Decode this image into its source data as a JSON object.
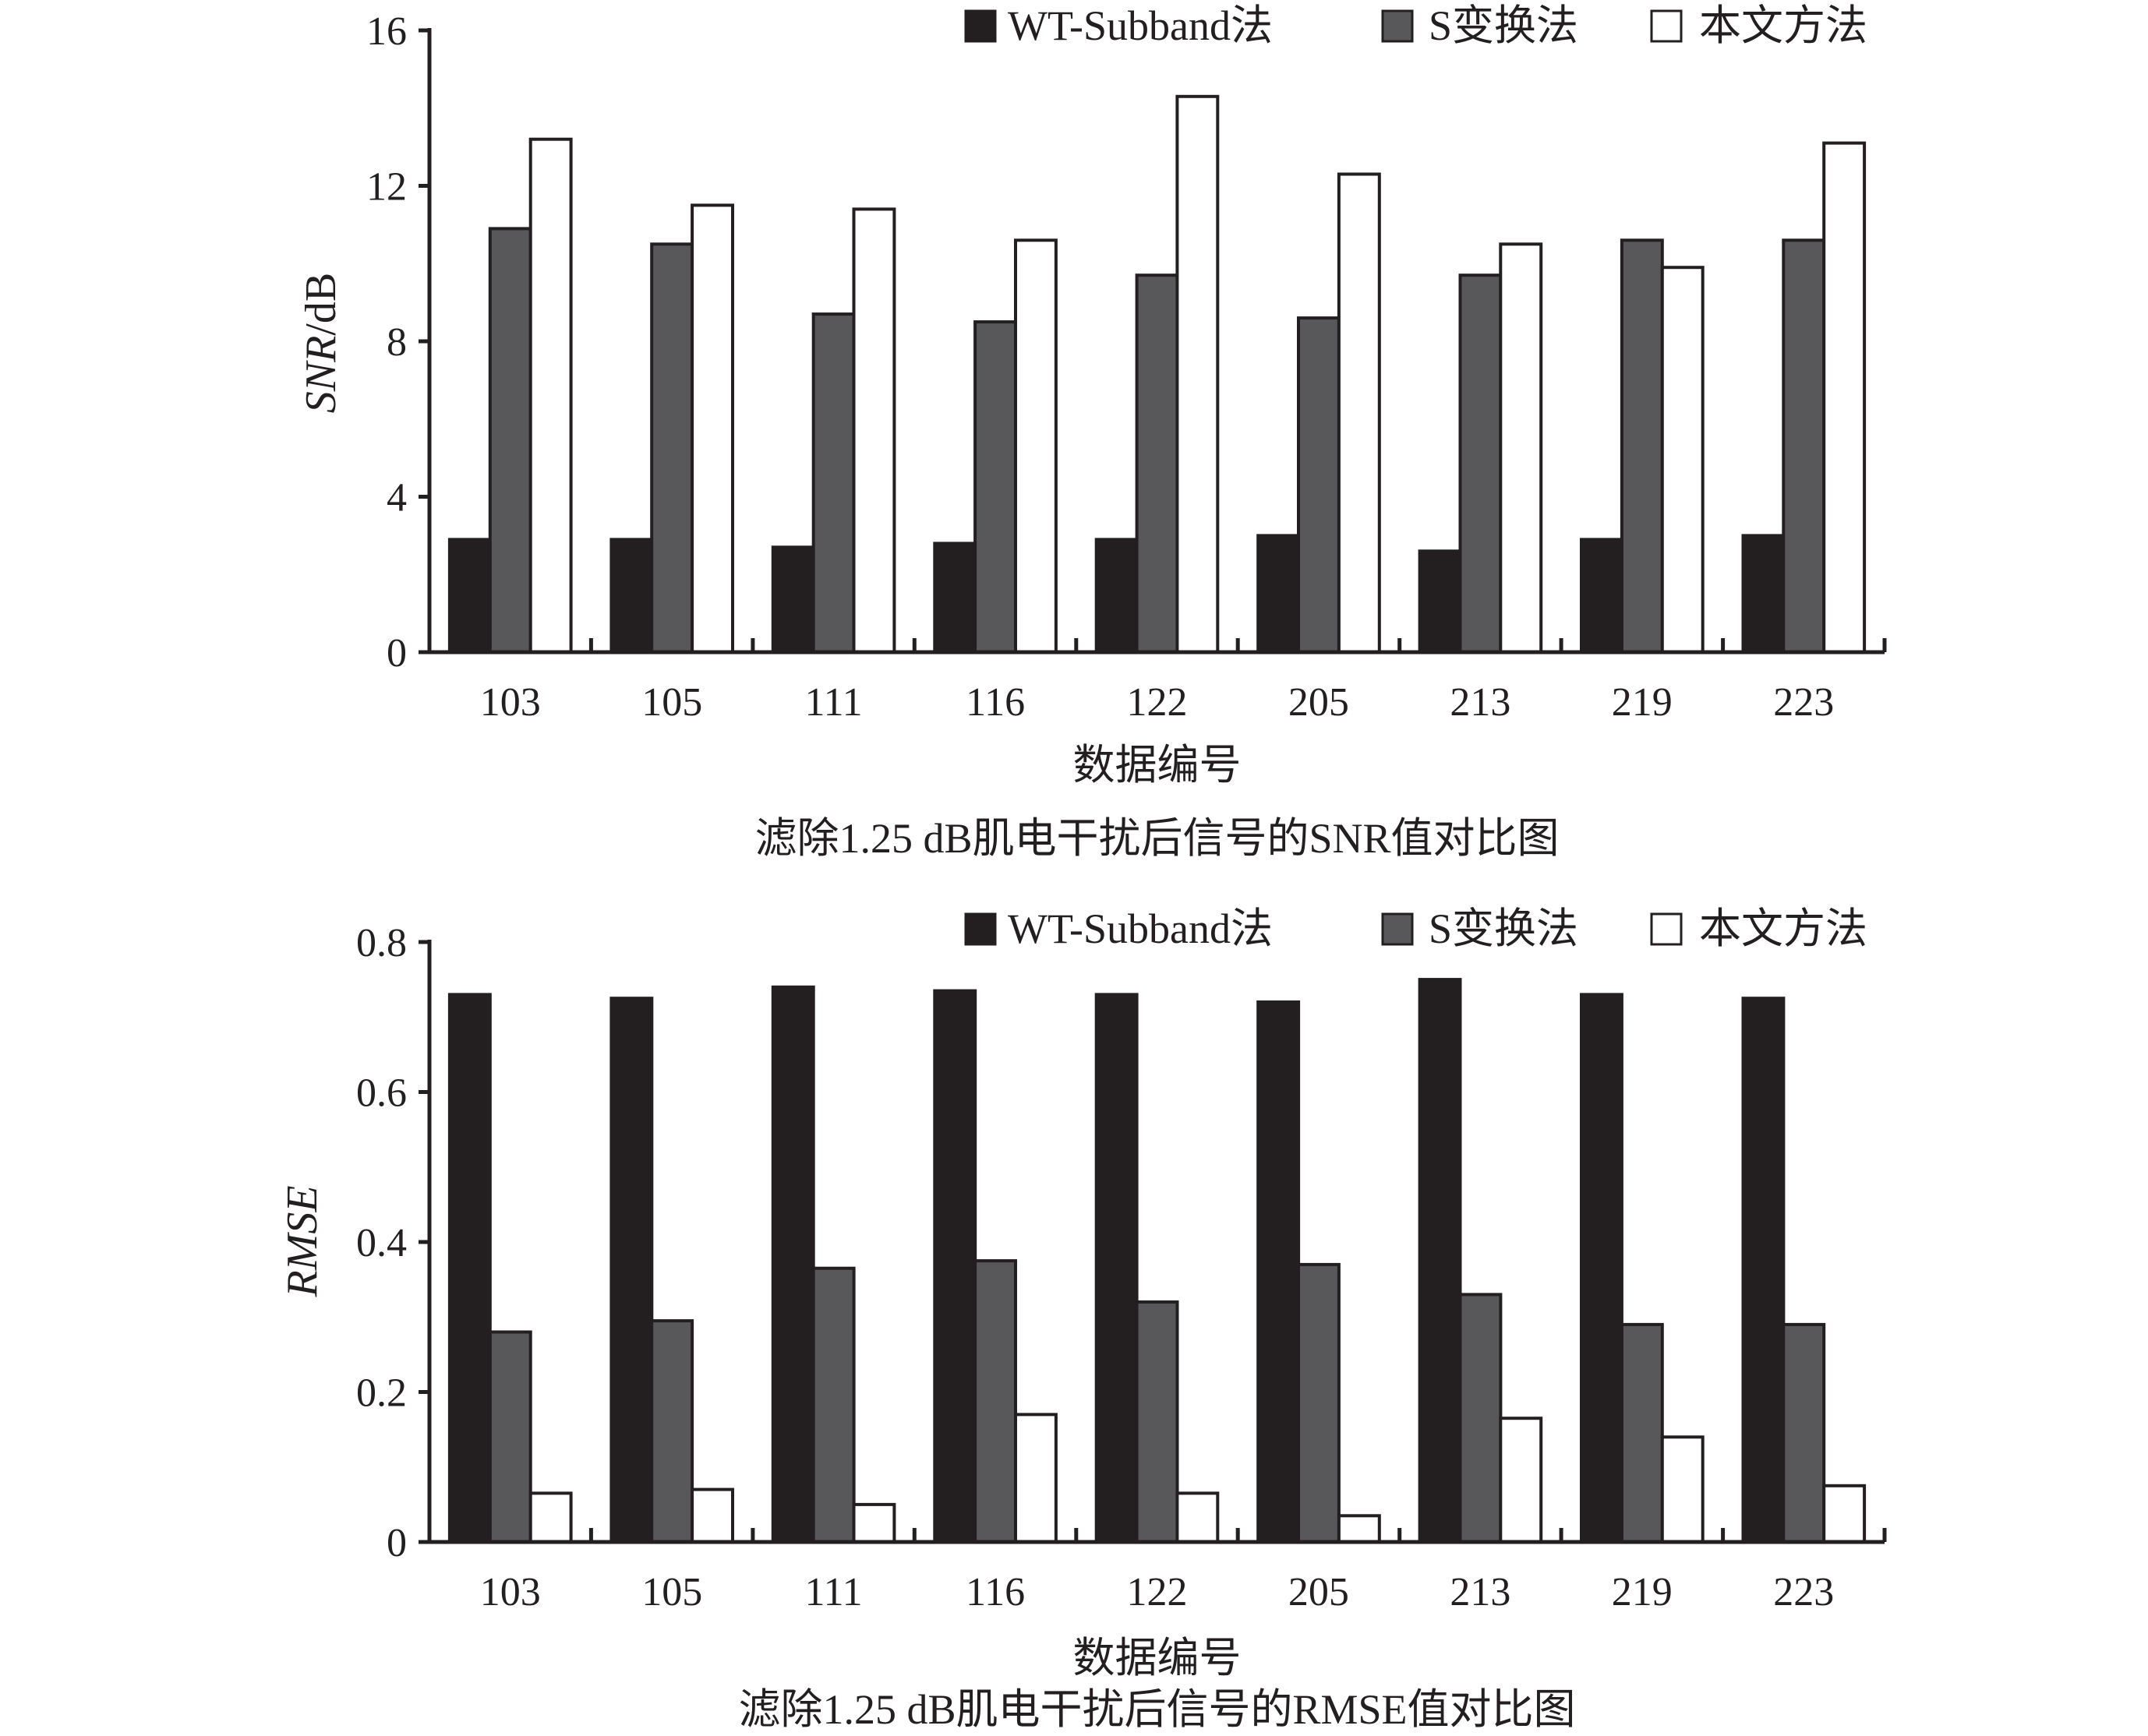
{
  "chart_data": [
    {
      "type": "bar",
      "title": "滤除1.25 dB肌电干扰后信号的SNR值对比图",
      "xlabel": "数据编号",
      "ylabel": "SNR/dB",
      "ylim": [
        0,
        16
      ],
      "yticks": [
        0,
        4,
        8,
        12,
        16
      ],
      "categories": [
        "103",
        "105",
        "111",
        "116",
        "122",
        "205",
        "213",
        "219",
        "223"
      ],
      "series": [
        {
          "name": "WT-Subband法",
          "color": "#231f20",
          "values": [
            2.9,
            2.9,
            2.7,
            2.8,
            2.9,
            3.0,
            2.6,
            2.9,
            3.0
          ]
        },
        {
          "name": "S变换法",
          "color": "#58585a",
          "values": [
            10.9,
            10.5,
            8.7,
            8.5,
            9.7,
            8.6,
            9.7,
            10.6,
            10.6
          ]
        },
        {
          "name": "本文方法",
          "color": "#ffffff",
          "values": [
            13.2,
            11.5,
            11.4,
            10.6,
            14.3,
            12.3,
            10.5,
            9.9,
            13.1
          ]
        }
      ],
      "legend": "top-right",
      "grid": false
    },
    {
      "type": "bar",
      "title": "滤除1.25 dB肌电干扰后信号的RMSE值对比图",
      "xlabel": "数据编号",
      "ylabel": "RMSE",
      "ylim": [
        0,
        0.8
      ],
      "yticks": [
        0,
        0.2,
        0.4,
        0.6,
        0.8
      ],
      "categories": [
        "103",
        "105",
        "111",
        "116",
        "122",
        "205",
        "213",
        "219",
        "223"
      ],
      "series": [
        {
          "name": "WT-Subband法",
          "color": "#231f20",
          "values": [
            0.73,
            0.725,
            0.74,
            0.735,
            0.73,
            0.72,
            0.75,
            0.73,
            0.725
          ]
        },
        {
          "name": "S变换法",
          "color": "#58585a",
          "values": [
            0.28,
            0.295,
            0.365,
            0.375,
            0.32,
            0.37,
            0.33,
            0.29,
            0.29
          ]
        },
        {
          "name": "本文方法",
          "color": "#ffffff",
          "values": [
            0.065,
            0.07,
            0.05,
            0.17,
            0.065,
            0.035,
            0.165,
            0.14,
            0.075
          ]
        }
      ],
      "legend": "top-right",
      "grid": false
    }
  ]
}
